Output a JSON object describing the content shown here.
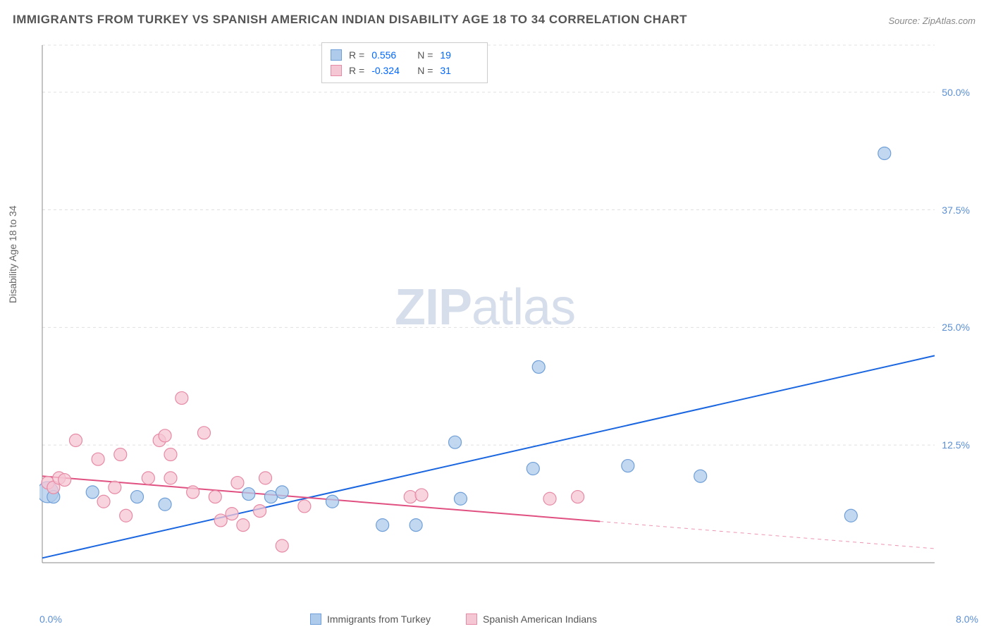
{
  "title": "IMMIGRANTS FROM TURKEY VS SPANISH AMERICAN INDIAN DISABILITY AGE 18 TO 34 CORRELATION CHART",
  "source": "Source: ZipAtlas.com",
  "watermark_a": "ZIP",
  "watermark_b": "atlas",
  "y_axis_label": "Disability Age 18 to 34",
  "chart": {
    "type": "scatter",
    "background_color": "#ffffff",
    "grid_color": "#e0e0e0",
    "axis_color": "#888888",
    "xlim": [
      0.0,
      8.0
    ],
    "ylim": [
      0.0,
      55.0
    ],
    "y_ticks": [
      {
        "v": 12.5,
        "label": "12.5%"
      },
      {
        "v": 25.0,
        "label": "25.0%"
      },
      {
        "v": 37.5,
        "label": "37.5%"
      },
      {
        "v": 50.0,
        "label": "50.0%"
      }
    ],
    "x_tick_left": "0.0%",
    "x_tick_right": "8.0%",
    "series": [
      {
        "name": "Immigrants from Turkey",
        "color_fill": "#aecbeb",
        "color_stroke": "#6f9fd8",
        "marker_radius": 9,
        "trend": {
          "x1": 0.0,
          "y1": 0.5,
          "x2": 8.0,
          "y2": 22.0,
          "color": "#1a66e0",
          "width": 2,
          "solid_until_x": 8.0
        },
        "points": [
          {
            "x": 0.05,
            "y": 7.5,
            "r": 15
          },
          {
            "x": 0.1,
            "y": 7.0
          },
          {
            "x": 0.45,
            "y": 7.5
          },
          {
            "x": 0.85,
            "y": 7.0
          },
          {
            "x": 1.1,
            "y": 6.2
          },
          {
            "x": 1.85,
            "y": 7.3
          },
          {
            "x": 2.05,
            "y": 7.0
          },
          {
            "x": 2.15,
            "y": 7.5
          },
          {
            "x": 2.6,
            "y": 6.5
          },
          {
            "x": 3.05,
            "y": 4.0
          },
          {
            "x": 3.35,
            "y": 4.0
          },
          {
            "x": 3.7,
            "y": 12.8
          },
          {
            "x": 3.75,
            "y": 6.8
          },
          {
            "x": 4.4,
            "y": 10.0
          },
          {
            "x": 4.45,
            "y": 20.8
          },
          {
            "x": 5.25,
            "y": 10.3
          },
          {
            "x": 5.9,
            "y": 9.2
          },
          {
            "x": 7.25,
            "y": 5.0
          },
          {
            "x": 7.55,
            "y": 43.5
          }
        ]
      },
      {
        "name": "Spanish American Indians",
        "color_fill": "#f5c6d4",
        "color_stroke": "#e68aa5",
        "marker_radius": 9,
        "trend": {
          "x1": 0.0,
          "y1": 9.2,
          "x2": 8.0,
          "y2": 1.5,
          "color": "#e05080",
          "width": 2,
          "solid_until_x": 5.0
        },
        "points": [
          {
            "x": 0.05,
            "y": 8.5
          },
          {
            "x": 0.1,
            "y": 8.0
          },
          {
            "x": 0.15,
            "y": 9.0
          },
          {
            "x": 0.2,
            "y": 8.8
          },
          {
            "x": 0.3,
            "y": 13.0
          },
          {
            "x": 0.5,
            "y": 11.0
          },
          {
            "x": 0.55,
            "y": 6.5
          },
          {
            "x": 0.65,
            "y": 8.0
          },
          {
            "x": 0.7,
            "y": 11.5
          },
          {
            "x": 0.75,
            "y": 5.0
          },
          {
            "x": 0.95,
            "y": 9.0
          },
          {
            "x": 1.05,
            "y": 13.0
          },
          {
            "x": 1.1,
            "y": 13.5
          },
          {
            "x": 1.15,
            "y": 9.0
          },
          {
            "x": 1.15,
            "y": 11.5
          },
          {
            "x": 1.25,
            "y": 17.5
          },
          {
            "x": 1.35,
            "y": 7.5
          },
          {
            "x": 1.45,
            "y": 13.8
          },
          {
            "x": 1.55,
            "y": 7.0
          },
          {
            "x": 1.6,
            "y": 4.5
          },
          {
            "x": 1.7,
            "y": 5.2
          },
          {
            "x": 1.75,
            "y": 8.5
          },
          {
            "x": 1.8,
            "y": 4.0
          },
          {
            "x": 1.95,
            "y": 5.5
          },
          {
            "x": 2.0,
            "y": 9.0
          },
          {
            "x": 2.15,
            "y": 1.8
          },
          {
            "x": 2.35,
            "y": 6.0
          },
          {
            "x": 3.3,
            "y": 7.0
          },
          {
            "x": 3.4,
            "y": 7.2
          },
          {
            "x": 4.55,
            "y": 6.8
          },
          {
            "x": 4.8,
            "y": 7.0
          }
        ]
      }
    ],
    "stats": [
      {
        "series": 0,
        "r_label": "R =",
        "r": "0.556",
        "n_label": "N =",
        "n": "19"
      },
      {
        "series": 1,
        "r_label": "R =",
        "r": "-0.324",
        "n_label": "N =",
        "n": "31"
      }
    ]
  },
  "legend": {
    "items": [
      {
        "label": "Immigrants from Turkey",
        "fill": "#aecbeb",
        "stroke": "#6f9fd8"
      },
      {
        "label": "Spanish American Indians",
        "fill": "#f5c6d4",
        "stroke": "#e68aa5"
      }
    ]
  }
}
